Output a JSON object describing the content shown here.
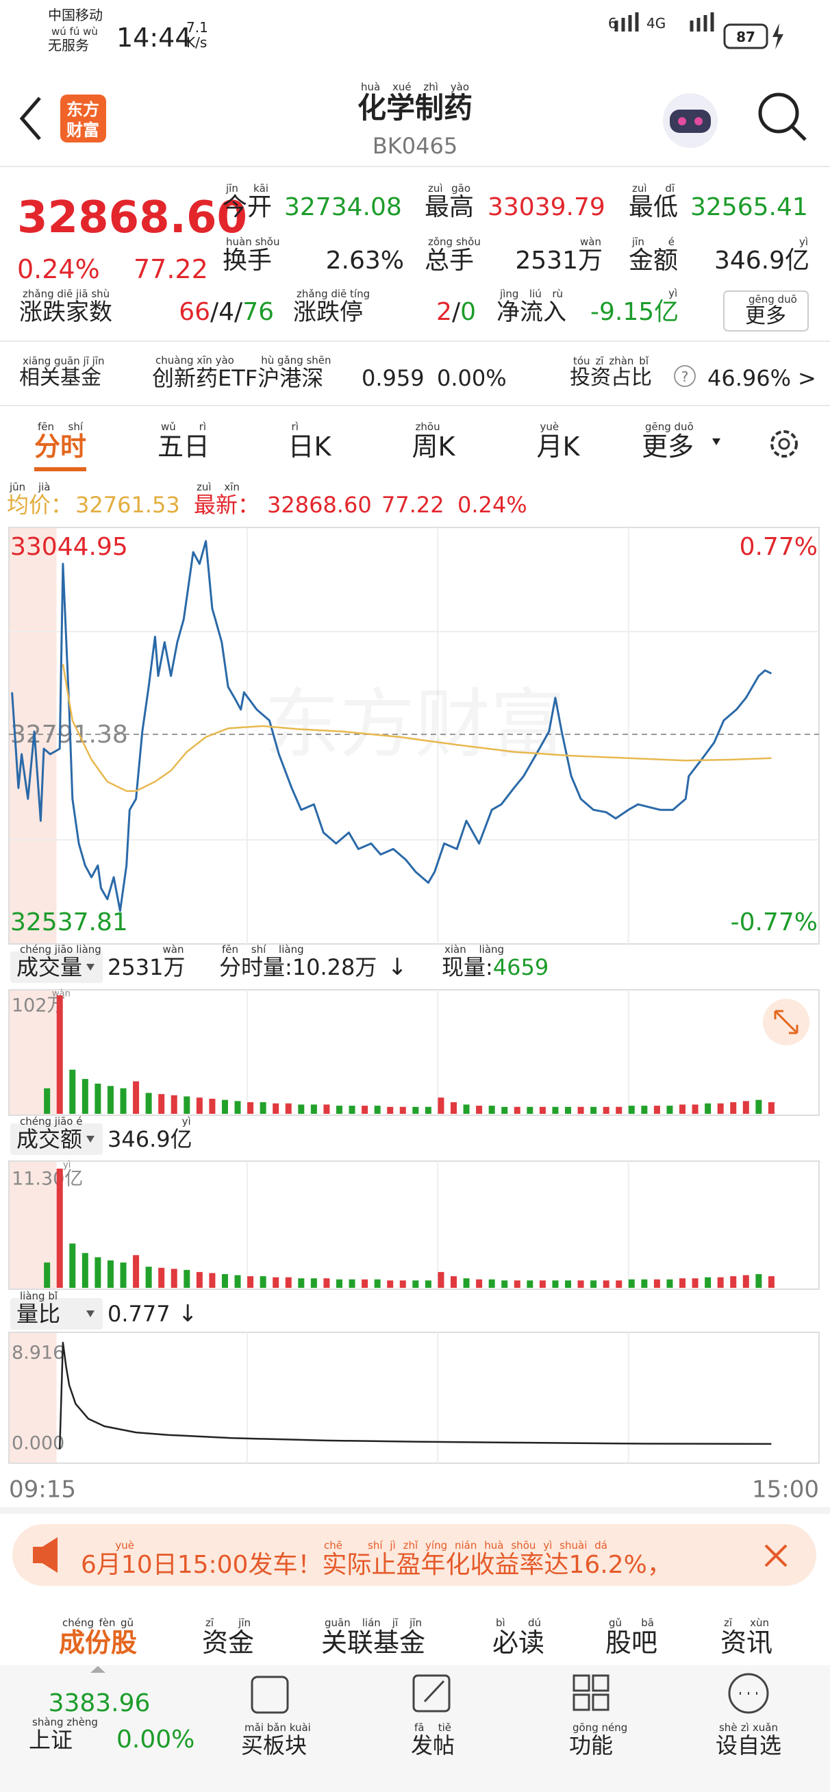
{
  "status_bar": {
    "carrier": "中国移动",
    "service": "无服务",
    "service_pinyin": "wú fú wù",
    "time": "14:44",
    "speed": "7.1",
    "speed_unit": "K/s",
    "network_a": "6",
    "network_b": "4G",
    "battery": "87"
  },
  "header": {
    "logo": [
      "东方",
      "财富"
    ],
    "title": "化学制药",
    "title_pinyin": "huà xué zhì yào",
    "code": "BK0465"
  },
  "quote": {
    "price": "32868.60",
    "change_pct": "0.24%",
    "change": "77.22",
    "stats": [
      {
        "label": "今开",
        "pinyin": "jīn kāi",
        "value": "32734.08"
      },
      {
        "label": "最高",
        "pinyin": "zuì gāo",
        "value": "33039.79"
      },
      {
        "label": "最低",
        "pinyin": "zuì dī",
        "value": "32565.41"
      },
      {
        "label": "换手",
        "pinyin": "huàn shǒu",
        "value": "2.63%"
      },
      {
        "label": "总手",
        "pinyin": "zǒng shǒu",
        "value": "2531万",
        "value_pinyin": "wàn"
      },
      {
        "label": "金额",
        "pinyin": "jīn é",
        "value": "346.9亿",
        "value_pinyin": "yì"
      }
    ],
    "breadth": {
      "label": "涨跌家数",
      "pinyin": "zhǎng diē jiā shù",
      "parts": [
        "66",
        "/4/",
        "76"
      ]
    },
    "limit": {
      "label": "涨跌停",
      "pinyin": "zhǎng diē tíng",
      "parts": [
        "2",
        "/",
        "0"
      ]
    },
    "inflow": {
      "label": "净流入",
      "pinyin": "jìng liú rù",
      "value": "-9.15亿",
      "value_pinyin": "yì"
    },
    "more": {
      "label": "更多",
      "pinyin": "gēng duō"
    }
  },
  "fund": {
    "label": "相关基金",
    "pinyin": "xiāng guān jī jīn",
    "name_a": "创新药",
    "name_a_pinyin": "chuàng xīn yào",
    "name_b": "ETF",
    "name_c": "沪港深",
    "name_c_pinyin": "hù gǎng shēn",
    "price": "0.959",
    "change": "0.00%",
    "ratio_label": "投资占比",
    "ratio_pinyin": "tóu zī zhàn bǐ",
    "help": "?",
    "ratio": "46.96%",
    "arrow": ">"
  },
  "tabs": [
    {
      "label": "分时",
      "pinyin": "fēn shí"
    },
    {
      "label": "五日",
      "pinyin": "wǔ rì"
    },
    {
      "label": "日K",
      "pinyin": "rì"
    },
    {
      "label": "周K",
      "pinyin": "zhōu"
    },
    {
      "label": "月K",
      "pinyin": "yuè"
    },
    {
      "label": "更多",
      "pinyin": "gēng duō"
    }
  ],
  "legend": {
    "avg_label": "均价：",
    "avg_pinyin": "jūn jià",
    "avg": "32761.53",
    "last_label": "最新：",
    "last_pinyin": "zuì xīn",
    "last": "32868.60",
    "change": "77.22",
    "change_pct": "0.24%"
  },
  "watermark": "东方财富",
  "charts": {
    "xlim": [
      0,
      255
    ],
    "xticks": [
      {
        "value": 0,
        "label": "09:15"
      },
      {
        "value": 255,
        "label": "15:00"
      }
    ],
    "auction_range": [
      0,
      15
    ],
    "price": {
      "type": "line",
      "ylim": [
        32537.81,
        33044.95
      ],
      "yticks": [
        33044.95,
        32791.38,
        32537.81
      ],
      "pct_ticks": [
        {
          "value": 33044.95,
          "label": "0.77%"
        },
        {
          "value": 32537.81,
          "label": "-0.77%"
        }
      ],
      "series": [
        {
          "color": "#2a69a8",
          "x": [
            1,
            3,
            4,
            6,
            8,
            10,
            11,
            13,
            16,
            17,
            19,
            20,
            22,
            24,
            26,
            28,
            29,
            31,
            33,
            35,
            37,
            38,
            40,
            42,
            44,
            46,
            47,
            49,
            51,
            53,
            55,
            56,
            58,
            60,
            62,
            64,
            65,
            67,
            69,
            71,
            73,
            74,
            78,
            82,
            85,
            89,
            92,
            96,
            99,
            103,
            107,
            110,
            114,
            117,
            121,
            125,
            128,
            132,
            134,
            137,
            141,
            144,
            148,
            152,
            155,
            159,
            162,
            166,
            170,
            172,
            174,
            177,
            180,
            184,
            188,
            191,
            195,
            198,
            202,
            205,
            209,
            213,
            214,
            218,
            222,
            225,
            229,
            232,
            236,
            238,
            240
          ],
          "values": [
            32845,
            32723,
            32766,
            32709,
            32795,
            32681,
            32773,
            32766,
            32773,
            33009,
            32823,
            32709,
            32652,
            32624,
            32609,
            32624,
            32595,
            32581,
            32609,
            32566,
            32624,
            32695,
            32709,
            32795,
            32852,
            32916,
            32866,
            32909,
            32866,
            32909,
            32938,
            32966,
            33024,
            33009,
            33038,
            32952,
            32938,
            32909,
            32852,
            32838,
            32823,
            32845,
            32823,
            32809,
            32766,
            32723,
            32695,
            32702,
            32666,
            32652,
            32666,
            32645,
            32652,
            32638,
            32645,
            32631,
            32616,
            32602,
            32616,
            32652,
            32645,
            32681,
            32652,
            32695,
            32702,
            32723,
            32738,
            32766,
            32795,
            32838,
            32795,
            32738,
            32709,
            32695,
            32692,
            32684,
            32695,
            32702,
            32698,
            32695,
            32695,
            32709,
            32738,
            32759,
            32781,
            32809,
            32823,
            32838,
            32866,
            32873,
            32869
          ]
        },
        {
          "color": "#e8b84e",
          "x": [
            17,
            20,
            26,
            31,
            37,
            40,
            46,
            51,
            56,
            62,
            69,
            80,
            91,
            105,
            123,
            141,
            159,
            177,
            195,
            213,
            227,
            240
          ],
          "values": [
            32881,
            32809,
            32759,
            32731,
            32719,
            32719,
            32731,
            32745,
            32769,
            32788,
            32799,
            32802,
            32798,
            32795,
            32788,
            32778,
            32769,
            32764,
            32761,
            32758,
            32759,
            32761
          ]
        }
      ]
    },
    "volume": {
      "type": "bar",
      "ylim": [
        0,
        102
      ],
      "yticks": [
        {
          "value": 102,
          "label": "102万"
        }
      ],
      "ytick_pinyin": "wàn",
      "up_color": "#e0393e",
      "down_color": "#22a12a",
      "x": [
        12,
        16,
        20,
        24,
        28,
        32,
        36,
        40,
        44,
        48,
        52,
        56,
        60,
        64,
        68,
        72,
        76,
        80,
        84,
        88,
        92,
        96,
        100,
        104,
        108,
        112,
        116,
        120,
        124,
        128,
        132,
        136,
        140,
        144,
        148,
        152,
        156,
        160,
        164,
        168,
        172,
        176,
        180,
        184,
        188,
        192,
        196,
        200,
        204,
        208,
        212,
        216,
        220,
        224,
        228,
        232,
        236,
        240
      ],
      "values": [
        22,
        102,
        38,
        30,
        26,
        24,
        22,
        28,
        18,
        17,
        16,
        15,
        14,
        13,
        12,
        11,
        10,
        10,
        9,
        9,
        8,
        8,
        8,
        7,
        7,
        7,
        7,
        6,
        6,
        6,
        6,
        14,
        10,
        8,
        7,
        7,
        6,
        6,
        6,
        6,
        6,
        6,
        6,
        6,
        6,
        6,
        7,
        7,
        7,
        7,
        8,
        8,
        9,
        9,
        10,
        11,
        12,
        10
      ],
      "directions": [
        "down",
        "up",
        "down",
        "down",
        "down",
        "down",
        "down",
        "up",
        "down",
        "up",
        "up",
        "down",
        "up",
        "up",
        "down",
        "down",
        "up",
        "down",
        "up",
        "up",
        "down",
        "down",
        "up",
        "down",
        "down",
        "up",
        "down",
        "up",
        "up",
        "down",
        "down",
        "up",
        "up",
        "down",
        "up",
        "down",
        "down",
        "up",
        "down",
        "up",
        "down",
        "down",
        "up",
        "down",
        "up",
        "up",
        "down",
        "down",
        "up",
        "down",
        "up",
        "up",
        "down",
        "up",
        "up",
        "up",
        "down",
        "up"
      ]
    },
    "amount": {
      "type": "bar",
      "ylim": [
        0,
        11.3
      ],
      "yticks": [
        {
          "value": 11.3,
          "label": "11.30亿"
        }
      ],
      "ytick_pinyin": "yì",
      "values": [
        2.4,
        11.3,
        4.2,
        3.3,
        2.9,
        2.6,
        2.4,
        3.1,
        2.0,
        1.9,
        1.8,
        1.7,
        1.5,
        1.4,
        1.3,
        1.2,
        1.1,
        1.1,
        1.0,
        1.0,
        0.9,
        0.9,
        0.9,
        0.8,
        0.8,
        0.8,
        0.8,
        0.7,
        0.7,
        0.7,
        0.7,
        1.5,
        1.1,
        0.9,
        0.8,
        0.8,
        0.7,
        0.7,
        0.7,
        0.7,
        0.7,
        0.7,
        0.7,
        0.7,
        0.7,
        0.7,
        0.8,
        0.8,
        0.8,
        0.8,
        0.9,
        0.9,
        1.0,
        1.0,
        1.1,
        1.2,
        1.3,
        1.1
      ]
    },
    "ratio": {
      "type": "line",
      "ylim": [
        0,
        8.916
      ],
      "yticks": [
        8.916,
        {
          "value": 0,
          "label": "0.000"
        }
      ],
      "color": "#222",
      "x": [
        16,
        17,
        18,
        19,
        21,
        25,
        30,
        40,
        50,
        70,
        100,
        130,
        160,
        200,
        240
      ],
      "values": [
        0.35,
        8.916,
        7,
        5.5,
        4,
        2.8,
        2.2,
        1.7,
        1.5,
        1.25,
        1.05,
        0.95,
        0.88,
        0.8,
        0.777
      ]
    }
  },
  "volume_bar": {
    "selector": "成交量",
    "selector_pinyin": "chéng jiāo liàng",
    "total": "2531万",
    "total_pinyin": "wàn",
    "minute_label": "分时量:10.28万",
    "minute_pinyin": "fēn shí liàng",
    "minute_arrow": "↓",
    "current_label": "现量:",
    "current_pinyin": "xiàn liàng",
    "current": "4659"
  },
  "amount_bar": {
    "selector": "成交额",
    "selector_pinyin": "chéng jiāo é",
    "total": "346.9亿",
    "total_pinyin": "yì"
  },
  "ratio_bar": {
    "selector": "量比",
    "selector_pinyin": "liàng bǐ",
    "total": "0.777",
    "arrow": "↓"
  },
  "banner": {
    "text": "6月10日15:00发车！实际止盈年化收益率达16.2%，",
    "pinyin": [
      "yuè",
      "chē",
      "shí jì zhǐ yíng nián huà shōu yì shuài dá"
    ]
  },
  "bottom_tabs": [
    {
      "label": "成份股",
      "pinyin": "chéng fèn gǔ"
    },
    {
      "label": "资金",
      "pinyin": "zī jīn"
    },
    {
      "label": "关联基金",
      "pinyin": "guān lián jī jīn"
    },
    {
      "label": "必读",
      "pinyin": "bì dú"
    },
    {
      "label": "股吧",
      "pinyin": "gǔ bā"
    },
    {
      "label": "资讯",
      "pinyin": "zī xùn"
    }
  ],
  "index": {
    "name": "上证",
    "pinyin": "shàng zhèng",
    "value": "3383.96",
    "change": "0.00%"
  },
  "nav": [
    {
      "label": "买板块",
      "pinyin": "mǎi bǎn kuài"
    },
    {
      "label": "发帖",
      "pinyin": "fā tiě"
    },
    {
      "label": "功能",
      "pinyin": "gōng néng"
    },
    {
      "label": "设自选",
      "pinyin": "shè zì xuǎn"
    }
  ]
}
